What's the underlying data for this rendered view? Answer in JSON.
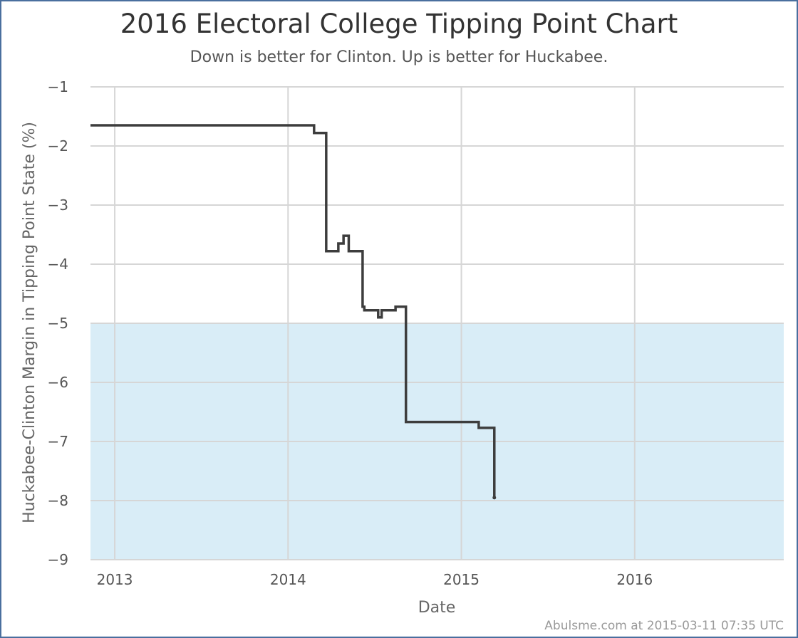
{
  "colors": {
    "background": "#ffffff",
    "frame": "#4a6f9e",
    "band": "#d9edf7",
    "grid": "#d6d6d6",
    "line": "#3d3d3d",
    "title": "#333333",
    "text": "#555555"
  },
  "chart_data": {
    "type": "line",
    "title": "2016 Electoral College Tipping Point Chart",
    "subtitle": "Down is better for Clinton. Up is better for Huckabee.",
    "xlabel": "Date",
    "ylabel": "Huckabee-Clinton Margin in Tipping Point State (%)",
    "xlim": [
      2012.86,
      2016.86
    ],
    "ylim": [
      -9,
      -1
    ],
    "xticks": [
      "2013",
      "2014",
      "2015",
      "2016"
    ],
    "yticks": [
      "−1",
      "−2",
      "−3",
      "−4",
      "−5",
      "−6",
      "−7",
      "−8",
      "−9"
    ],
    "grid": true,
    "step": true,
    "shaded_band": {
      "from": -9,
      "to": -5
    },
    "series": [
      {
        "x": [
          2012.86,
          2014.15,
          2014.22,
          2014.23,
          2014.29,
          2014.32,
          2014.35,
          2014.43,
          2014.44,
          2014.52,
          2014.54,
          2014.62,
          2014.68,
          2015.1,
          2015.19
        ],
        "y": [
          -1.65,
          -1.78,
          -3.78,
          -3.78,
          -3.65,
          -3.52,
          -3.78,
          -4.72,
          -4.78,
          -4.9,
          -4.78,
          -4.72,
          -6.67,
          -6.77,
          -7.95
        ]
      }
    ]
  },
  "footer": "Abulsme.com at 2015-03-11 07:35 UTC"
}
